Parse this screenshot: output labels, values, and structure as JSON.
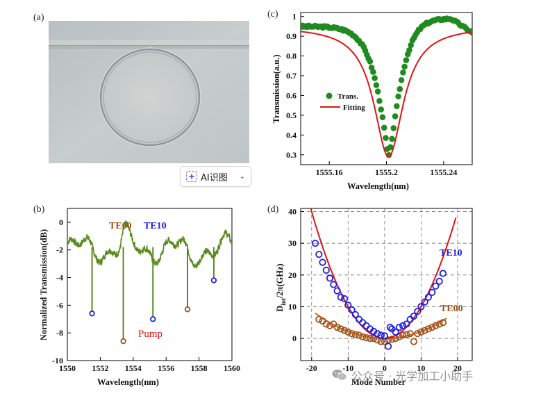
{
  "panels": {
    "a": {
      "label": "(a)"
    },
    "b": {
      "label": "(b)"
    },
    "c": {
      "label": "(c)"
    },
    "d": {
      "label": "(d)"
    }
  },
  "ui": {
    "ai_badge": {
      "label": "AI识图",
      "icon": "sparkle-icon",
      "chevron": "chevron-down-icon"
    },
    "watermark": {
      "text": "公众号 · 光学加工小助手",
      "icon": "wechat-icon"
    }
  },
  "colors": {
    "green": "#5a8a1e",
    "dark_green": "#1f8b1f",
    "red": "#e01414",
    "blue": "#1f1fe0",
    "brown": "#a0521d",
    "orange": "#c9711a"
  },
  "chart_data": [
    {
      "id": "b",
      "type": "line",
      "xlabel": "Wavelength(nm)",
      "ylabel": "Normalized Transmission(dB)",
      "xlim": [
        1550,
        1560
      ],
      "ylim": [
        -10,
        1
      ],
      "xticks": [
        1550,
        1552,
        1554,
        1556,
        1558,
        1560
      ],
      "xtick_labels": [
        "1550",
        "1552",
        "1554",
        "1556",
        "1558",
        "1560"
      ],
      "yticks": [
        0,
        -2,
        -4,
        -6,
        -8,
        -10
      ],
      "ytick_labels": [
        "0",
        "-2",
        "-4",
        "-6",
        "-8",
        "-10"
      ],
      "annotations": {
        "te00": "TE00",
        "te10": "TE10",
        "pump": "Pump"
      },
      "dips": [
        {
          "x": 1551.5,
          "y": -6.6,
          "mode": "TE10"
        },
        {
          "x": 1553.4,
          "y": -8.6,
          "mode": "TE00"
        },
        {
          "x": 1555.2,
          "y": -7.0,
          "mode": "TE10"
        },
        {
          "x": 1557.3,
          "y": -6.3,
          "mode": "TE00"
        },
        {
          "x": 1558.9,
          "y": -4.2,
          "mode": "TE10"
        }
      ]
    },
    {
      "id": "c",
      "type": "scatter",
      "xlabel": "Wavelength(nm)",
      "ylabel": "Transmission(a.u.)",
      "xlim": [
        1555.14,
        1555.26
      ],
      "ylim": [
        0.25,
        1.02
      ],
      "xticks": [
        1555.16,
        1555.2,
        1555.24
      ],
      "xtick_labels": [
        "1555.16",
        "1555.2",
        "1555.24"
      ],
      "yticks": [
        0.3,
        0.4,
        0.5,
        0.6,
        0.7,
        0.8,
        0.9,
        1
      ],
      "ytick_labels": [
        "0.3",
        "0.4",
        "0.5",
        "0.6",
        "0.7",
        "0.8",
        "0.9",
        "1"
      ],
      "legend": {
        "trans": "Trans.",
        "fitting": "Fitting",
        "position": "middle-left"
      },
      "series": [
        {
          "name": "Trans.",
          "kind": "points",
          "center": 1555.2015,
          "min": 0.29,
          "baseline_left": 0.95,
          "baseline_right": 0.92,
          "peak_right": 0.99
        },
        {
          "name": "Fitting",
          "kind": "lorentzian",
          "center": 1555.2015,
          "min": 0.29,
          "baseline": 0.95,
          "hwhm": 0.0125
        }
      ]
    },
    {
      "id": "d",
      "type": "scatter",
      "xlabel": "Mode Number",
      "ylabel_main": "D",
      "ylabel_sub": "int",
      "ylabel_rest": "/2π(GHz)",
      "xlim": [
        -23,
        24
      ],
      "ylim": [
        -7,
        41
      ],
      "xticks": [
        -20,
        -10,
        0,
        10,
        20
      ],
      "xtick_labels": [
        "-20",
        "-10",
        "0",
        "10",
        "20"
      ],
      "yticks": [
        0,
        10,
        20,
        30,
        40
      ],
      "ytick_labels": [
        "0",
        "10",
        "20",
        "30",
        "40"
      ],
      "annotations": {
        "te10": "TE10",
        "te00": "TE00"
      },
      "series": [
        {
          "name": "TE10",
          "points": [
            [
              -19,
              30
            ],
            [
              -18,
              26.5
            ],
            [
              -17,
              24
            ],
            [
              -16,
              21.5
            ],
            [
              -15,
              19
            ],
            [
              -14,
              17
            ],
            [
              -13,
              15
            ],
            [
              -12,
              13
            ],
            [
              -11,
              12.5
            ],
            [
              -10,
              10.5
            ],
            [
              -9,
              9
            ],
            [
              -8,
              7.5
            ],
            [
              -7,
              6
            ],
            [
              -6,
              5
            ],
            [
              -5,
              4
            ],
            [
              -4,
              3
            ],
            [
              -3,
              2.2
            ],
            [
              -2,
              1.5
            ],
            [
              -1,
              1
            ],
            [
              0,
              0.8
            ],
            [
              1,
              -2.5
            ],
            [
              1.5,
              3.5
            ],
            [
              2,
              3
            ],
            [
              3,
              2
            ],
            [
              4,
              3.5
            ],
            [
              5,
              4
            ],
            [
              6,
              4.5
            ],
            [
              7,
              6
            ],
            [
              8,
              7
            ],
            [
              9,
              8.5
            ],
            [
              10,
              10
            ],
            [
              11,
              11.5
            ],
            [
              12,
              13
            ],
            [
              13,
              14.5
            ],
            [
              14,
              16.5
            ],
            [
              15,
              18
            ],
            [
              16,
              20.5
            ]
          ]
        },
        {
          "name": "TE10 fit",
          "curvature": 0.1,
          "x_range": [
            -20.5,
            19.5
          ]
        },
        {
          "name": "TE00",
          "points": [
            [
              -18,
              6
            ],
            [
              -17,
              5.5
            ],
            [
              -16,
              4.5
            ],
            [
              -15,
              4
            ],
            [
              -14,
              4.5
            ],
            [
              -13,
              3.5
            ],
            [
              -12,
              3
            ],
            [
              -11,
              2.5
            ],
            [
              -10,
              2
            ],
            [
              -9,
              1.5
            ],
            [
              -8,
              1.2
            ],
            [
              -7,
              1
            ],
            [
              -6,
              0.5
            ],
            [
              -5,
              0.2
            ],
            [
              -4,
              0
            ],
            [
              -3,
              0
            ],
            [
              -2,
              -0.5
            ],
            [
              -1,
              -1
            ],
            [
              0,
              -1
            ],
            [
              1,
              -0.5
            ],
            [
              2,
              -0.3
            ],
            [
              3,
              0
            ],
            [
              4,
              0.5
            ],
            [
              5,
              1
            ],
            [
              6,
              1.2
            ],
            [
              7,
              1.5
            ],
            [
              8,
              -1
            ],
            [
              9,
              1.5
            ],
            [
              10,
              2
            ],
            [
              11,
              2.5
            ],
            [
              12,
              3
            ],
            [
              13,
              3.5
            ],
            [
              14,
              4
            ],
            [
              15,
              4.5
            ],
            [
              16,
              5
            ]
          ]
        },
        {
          "name": "TE00 fit",
          "curvature": 0.022,
          "x_range": [
            -19,
            17
          ]
        }
      ]
    }
  ]
}
